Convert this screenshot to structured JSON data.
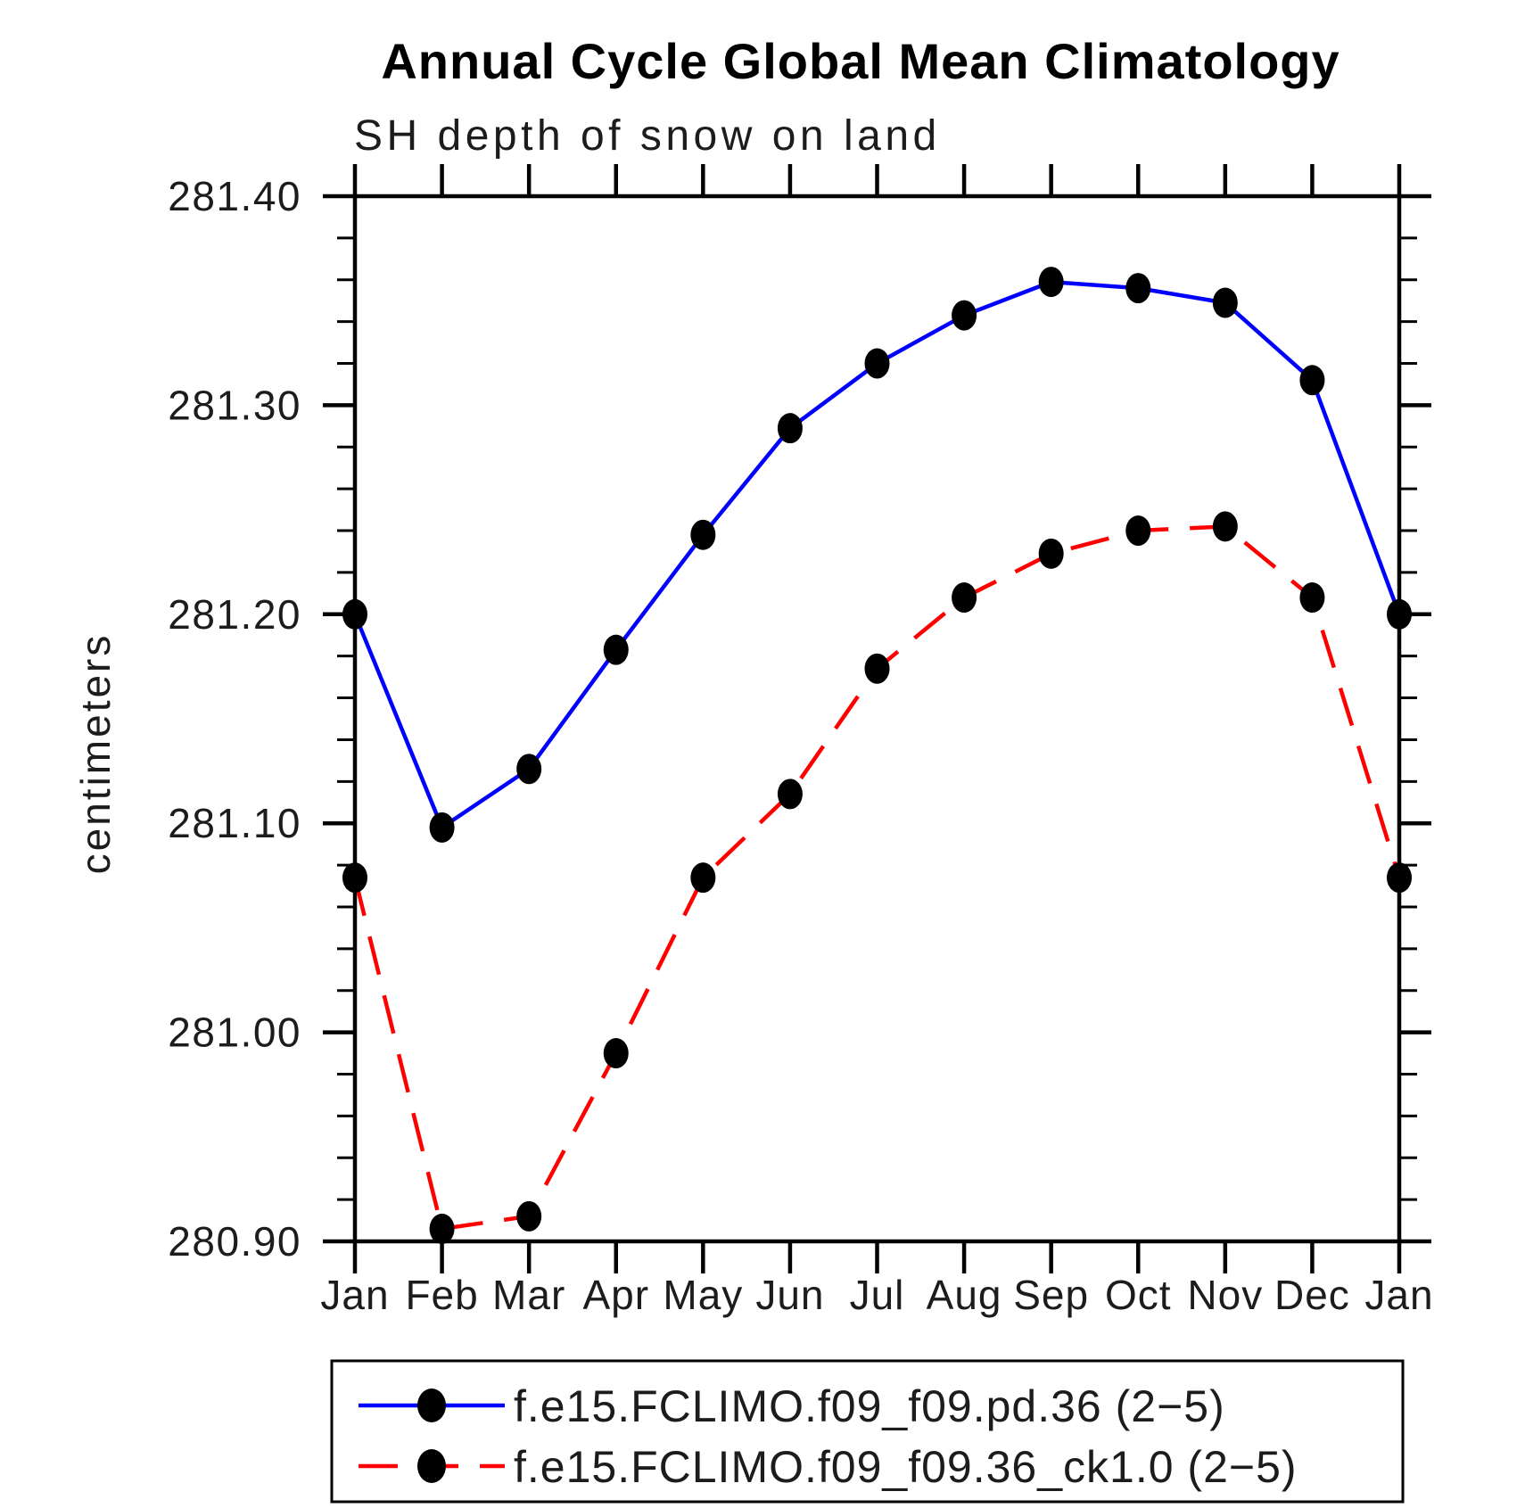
{
  "page": {
    "title": "Annual Cycle Global Mean Climatology",
    "subtitle": "SH depth of snow on land"
  },
  "chart_data": {
    "type": "line",
    "title": "Annual Cycle Global Mean Climatology",
    "subtitle": "SH depth of snow on land",
    "xlabel": "",
    "ylabel": "centimeters",
    "categories": [
      "Jan",
      "Feb",
      "Mar",
      "Apr",
      "May",
      "Jun",
      "Jul",
      "Aug",
      "Sep",
      "Oct",
      "Nov",
      "Dec",
      "Jan"
    ],
    "ylim": [
      280.9,
      281.4
    ],
    "y_major_step": 0.1,
    "y_minor_step": 0.02,
    "y_tick_labels": [
      "280.90",
      "281.00",
      "281.10",
      "281.20",
      "281.30",
      "281.40"
    ],
    "grid": false,
    "legend_position": "bottom",
    "axis_color": "#000000",
    "marker_color": "#000000",
    "series": [
      {
        "name": "f.e15.FCLIMO.f09_f09.pd.36 (2−5)",
        "color": "#0000ff",
        "line_style": "solid",
        "values": [
          281.2,
          281.098,
          281.126,
          281.183,
          281.238,
          281.289,
          281.32,
          281.343,
          281.359,
          281.356,
          281.349,
          281.312,
          281.2
        ]
      },
      {
        "name": "f.e15.FCLIMO.f09_f09.36_ck1.0 (2−5)",
        "color": "#ff0000",
        "line_style": "dashed",
        "values": [
          281.074,
          280.906,
          280.912,
          280.99,
          281.074,
          281.114,
          281.174,
          281.208,
          281.229,
          281.24,
          281.242,
          281.208,
          281.074
        ]
      }
    ]
  }
}
